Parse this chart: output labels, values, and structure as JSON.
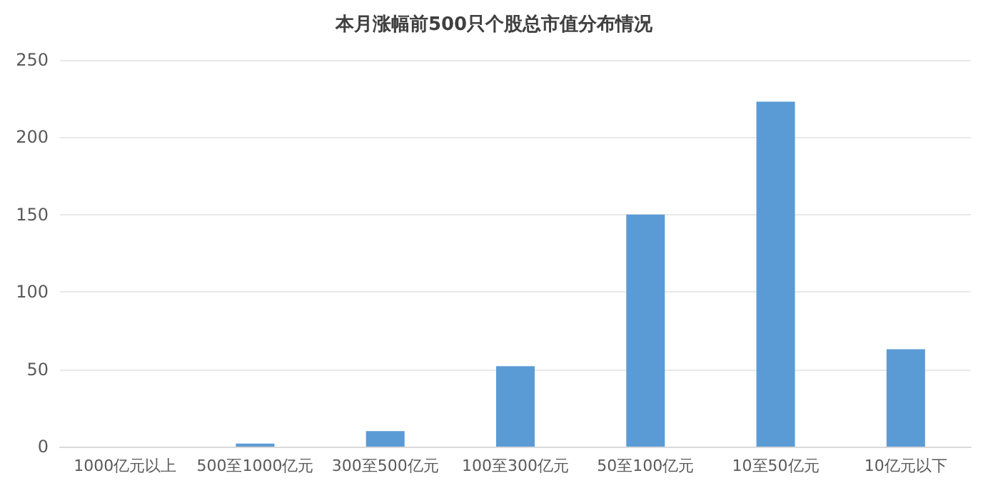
{
  "chart_data": {
    "type": "bar",
    "title": "本月涨幅前500只个股总市值分布情况",
    "categories": [
      "1000亿元以上",
      "500至1000亿元",
      "300至500亿元",
      "100至300亿元",
      "50至100亿元",
      "10至50亿元",
      "10亿元以下"
    ],
    "values": [
      0,
      2,
      10,
      52,
      150,
      223,
      63
    ],
    "color": "#5b9bd5",
    "ylim": [
      0,
      250
    ],
    "yticks": [
      0,
      50,
      100,
      150,
      200,
      250
    ],
    "grid": "y"
  }
}
